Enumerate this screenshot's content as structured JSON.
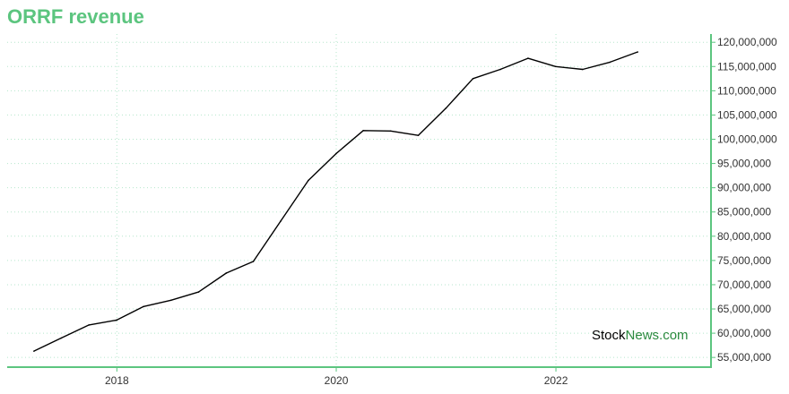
{
  "chart_data": {
    "type": "line",
    "title": "ORRF revenue",
    "xlabel": "",
    "ylabel": "",
    "x_ticks": [
      "2018",
      "2020",
      "2022"
    ],
    "y_ticks": [
      55000000,
      60000000,
      65000000,
      70000000,
      75000000,
      80000000,
      85000000,
      90000000,
      95000000,
      100000000,
      105000000,
      110000000,
      115000000,
      120000000
    ],
    "y_tick_labels": [
      "55,000,000",
      "60,000,000",
      "65,000,000",
      "70,000,000",
      "75,000,000",
      "80,000,000",
      "85,000,000",
      "90,000,000",
      "95,000,000",
      "100,000,000",
      "105,000,000",
      "110,000,000",
      "115,000,000",
      "120,000,000"
    ],
    "ylim": [
      53000000,
      121700000
    ],
    "xlim": [
      "2017-01-01",
      "2023-06-01"
    ],
    "grid": true,
    "legend": "none",
    "colors": {
      "line": "#000000",
      "axis": "#5cc57f",
      "grid": "#b5e6cc",
      "title": "#5cc57f"
    },
    "series": [
      {
        "x": [
          "2017-03-31",
          "2017-06-30",
          "2017-09-30",
          "2017-12-31",
          "2018-03-31",
          "2018-06-30",
          "2018-09-30",
          "2018-12-31",
          "2019-03-31",
          "2019-06-30",
          "2019-09-30",
          "2019-12-31",
          "2020-03-31",
          "2020-06-30",
          "2020-09-30",
          "2020-12-31",
          "2021-03-31",
          "2021-06-30",
          "2021-09-30",
          "2021-12-31",
          "2022-03-31",
          "2022-06-30",
          "2022-09-30"
        ],
        "values": [
          56300000,
          59000000,
          61700000,
          62700000,
          65500000,
          66800000,
          68500000,
          72400000,
          74800000,
          83100000,
          91500000,
          97000000,
          101800000,
          101700000,
          100800000,
          106400000,
          112500000,
          114400000,
          116700000,
          115000000,
          114400000,
          115900000,
          118000000
        ]
      }
    ]
  },
  "watermark": {
    "part1": "Stock",
    "part2": "News",
    "part3": ".com"
  }
}
